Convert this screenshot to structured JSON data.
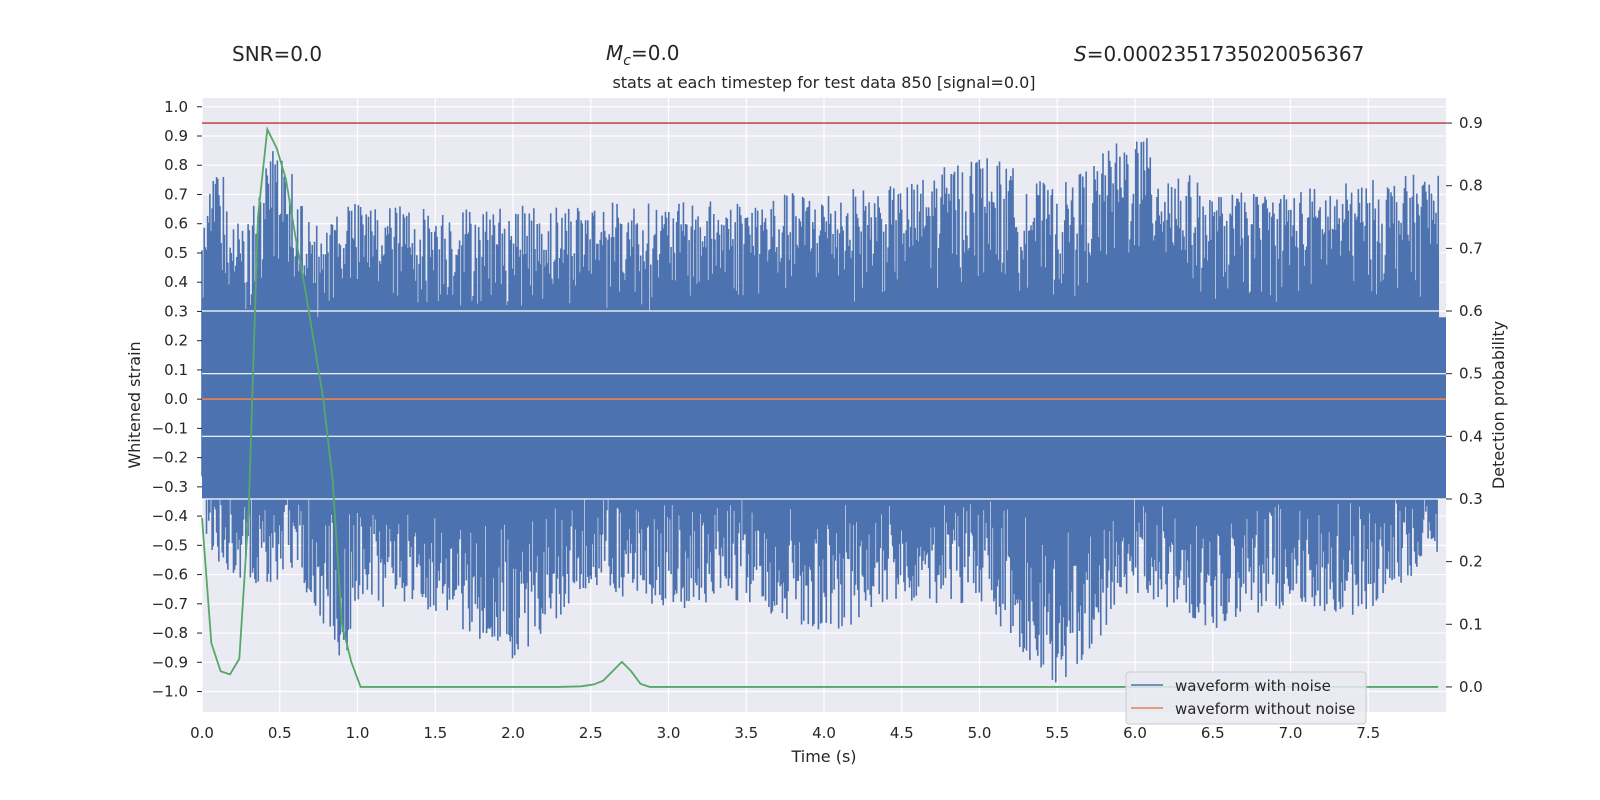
{
  "chart_data": {
    "type": "line",
    "header": {
      "snr_label": "SNR=0.0",
      "mc_symbol": "M",
      "mc_subscript": "c",
      "mc_value": "=0.0",
      "s_symbol": "S",
      "s_value": "=0.0002351735020056367"
    },
    "title": "stats at each timestep for test data 850 [signal=0.0]",
    "xlabel": "Time (s)",
    "ylabel_left": "Whitened strain",
    "ylabel_right": "Detection probability",
    "xlim": [
      0.0,
      8.0
    ],
    "ylim_left": [
      -1.07,
      1.03
    ],
    "ylim_right": [
      -0.04,
      0.94
    ],
    "x_ticks": [
      "0.0",
      "0.5",
      "1.0",
      "1.5",
      "2.0",
      "2.5",
      "3.0",
      "3.5",
      "4.0",
      "4.5",
      "5.0",
      "5.5",
      "6.0",
      "6.5",
      "7.0",
      "7.5"
    ],
    "y_ticks_left": [
      "1.0",
      "0.9",
      "0.8",
      "0.7",
      "0.6",
      "0.5",
      "0.4",
      "0.3",
      "0.2",
      "0.1",
      "0.0",
      "−0.1",
      "−0.2",
      "−0.3",
      "−0.4",
      "−0.5",
      "−0.6",
      "−0.7",
      "−0.8",
      "−0.9",
      "−1.0"
    ],
    "y_ticks_right": [
      "0.9",
      "0.8",
      "0.7",
      "0.6",
      "0.5",
      "0.4",
      "0.3",
      "0.2",
      "0.1",
      "0.0"
    ],
    "threshold_right": 0.9,
    "grid": true,
    "colors": {
      "background": "#eaeaf2",
      "grid": "#ffffff",
      "noisy": "#4c72b0",
      "clean": "#dd8452",
      "probability": "#55a868",
      "threshold": "#c44e52"
    },
    "noise_envelope": {
      "x": [
        0.0,
        0.1,
        0.2,
        0.3,
        0.4,
        0.5,
        0.6,
        0.7,
        0.8,
        0.9,
        1.0,
        1.5,
        2.0,
        2.5,
        3.0,
        3.5,
        4.0,
        4.5,
        5.0,
        5.5,
        6.0,
        6.5,
        7.0,
        7.5,
        7.95
      ],
      "upper": [
        0.55,
        0.86,
        0.6,
        0.62,
        0.78,
        0.93,
        0.75,
        0.6,
        0.6,
        0.7,
        0.67,
        0.66,
        0.66,
        0.68,
        0.67,
        0.69,
        0.72,
        0.73,
        0.85,
        0.72,
        0.93,
        0.7,
        0.72,
        0.75,
        0.78
      ],
      "lower": [
        -0.42,
        -0.58,
        -0.6,
        -0.64,
        -0.62,
        -0.65,
        -0.58,
        -0.7,
        -0.8,
        -0.95,
        -0.7,
        -0.74,
        -0.9,
        -0.66,
        -0.72,
        -0.7,
        -0.81,
        -0.7,
        -0.7,
        -1.0,
        -0.66,
        -0.79,
        -0.72,
        -0.75,
        -0.52
      ]
    },
    "series": [
      {
        "name": "waveform with noise",
        "axis": "left",
        "style": "noise"
      },
      {
        "name": "waveform without noise",
        "axis": "left",
        "x": [
          0.0,
          8.0
        ],
        "y": [
          0.0,
          0.0
        ]
      },
      {
        "name": "detection probability",
        "axis": "right",
        "x": [
          0.0,
          0.06,
          0.12,
          0.18,
          0.24,
          0.3,
          0.36,
          0.42,
          0.48,
          0.54,
          0.6,
          0.66,
          0.72,
          0.78,
          0.84,
          0.9,
          0.96,
          1.02,
          1.08,
          2.3,
          2.44,
          2.52,
          2.58,
          2.64,
          2.7,
          2.76,
          2.82,
          2.88,
          3.0,
          7.95
        ],
        "y": [
          0.27,
          0.07,
          0.025,
          0.02,
          0.045,
          0.28,
          0.75,
          0.89,
          0.86,
          0.81,
          0.72,
          0.64,
          0.55,
          0.46,
          0.33,
          0.1,
          0.04,
          0.0,
          0.0,
          0.0,
          0.001,
          0.004,
          0.01,
          0.025,
          0.04,
          0.025,
          0.005,
          0.0,
          0.0,
          0.0
        ]
      }
    ],
    "legend": {
      "position": "lower-right",
      "entries": [
        "waveform with noise",
        "waveform without noise"
      ]
    }
  }
}
